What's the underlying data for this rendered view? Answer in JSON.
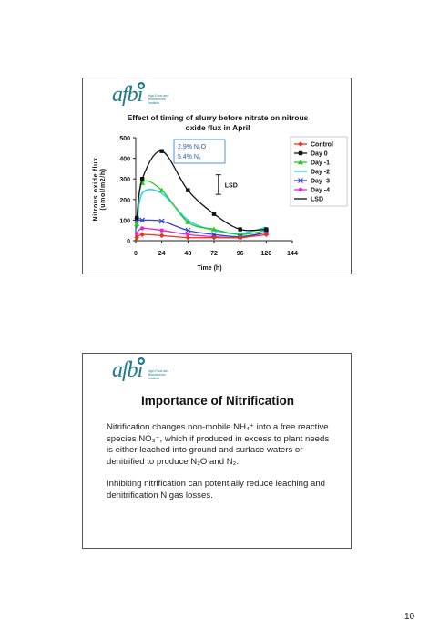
{
  "page_number": "10",
  "slide1": {
    "logo_text": "afbi",
    "logo_subtext": "Agri-Food and Biosciences Institute",
    "title_line1": "Effect of timing of slurry before nitrate on nitrous",
    "title_line2": "oxide flux in April",
    "annotation_line1": "2.9% N₂O",
    "annotation_line2": "5.4% N₂",
    "lsd_label": "LSD",
    "chart_data": {
      "type": "line",
      "title": "Effect of timing of slurry before nitrate on nitrous oxide flux in April",
      "xlabel": "Time (h)",
      "ylabel": "Nitrous oxide flux (umol/m2/h)",
      "xlim": [
        0,
        144
      ],
      "ylim": [
        0,
        500
      ],
      "xticks": [
        0,
        24,
        48,
        72,
        96,
        120,
        144
      ],
      "yticks": [
        0,
        100,
        200,
        300,
        400,
        500
      ],
      "grid": false,
      "legend_position": "right",
      "series": [
        {
          "name": "Control",
          "color": "#e8341c",
          "marker": "diamond",
          "x": [
            1,
            6,
            24,
            48,
            72,
            96,
            120
          ],
          "y": [
            15,
            30,
            25,
            15,
            15,
            15,
            30
          ]
        },
        {
          "name": "Day 0",
          "color": "#111111",
          "marker": "square",
          "x": [
            1,
            6,
            24,
            48,
            72,
            96,
            120
          ],
          "y": [
            110,
            300,
            435,
            245,
            130,
            55,
            55
          ]
        },
        {
          "name": "Day -1",
          "color": "#22cc22",
          "marker": "triangle",
          "x": [
            1,
            6,
            24,
            48,
            72,
            96,
            120
          ],
          "y": [
            80,
            280,
            245,
            90,
            55,
            30,
            50
          ]
        },
        {
          "name": "Day -2",
          "color": "#33ccee",
          "marker": "none",
          "x": [
            1,
            6,
            24,
            48,
            72,
            96,
            120
          ],
          "y": [
            60,
            230,
            230,
            100,
            50,
            35,
            65
          ]
        },
        {
          "name": "Day -3",
          "color": "#3344cc",
          "marker": "x",
          "x": [
            1,
            6,
            24,
            48,
            72,
            96,
            120
          ],
          "y": [
            100,
            100,
            95,
            50,
            30,
            20,
            40
          ]
        },
        {
          "name": "Day -4",
          "color": "#ee22cc",
          "marker": "circle",
          "x": [
            1,
            6,
            24,
            48,
            72,
            96,
            120
          ],
          "y": [
            35,
            60,
            50,
            30,
            20,
            15,
            40
          ]
        },
        {
          "name": "LSD",
          "color": "#111111",
          "marker": "none",
          "x": [],
          "y": []
        }
      ],
      "lsd_error_bar": {
        "x": 76,
        "low": 225,
        "high": 320
      }
    }
  },
  "slide2": {
    "logo_text": "afbi",
    "logo_subtext": "Agri-Food and Biosciences Institute",
    "title": "Importance of Nitrification",
    "paragraph1": "Nitrification changes non-mobile NH₄⁺ into a free reactive species NO₃⁻, which if produced in excess to plant needs is either leached into ground and surface waters or denitrified to produce N₂O and N₂.",
    "paragraph2": "Inhibiting nitrification can potentially reduce leaching and denitrification N gas losses."
  }
}
